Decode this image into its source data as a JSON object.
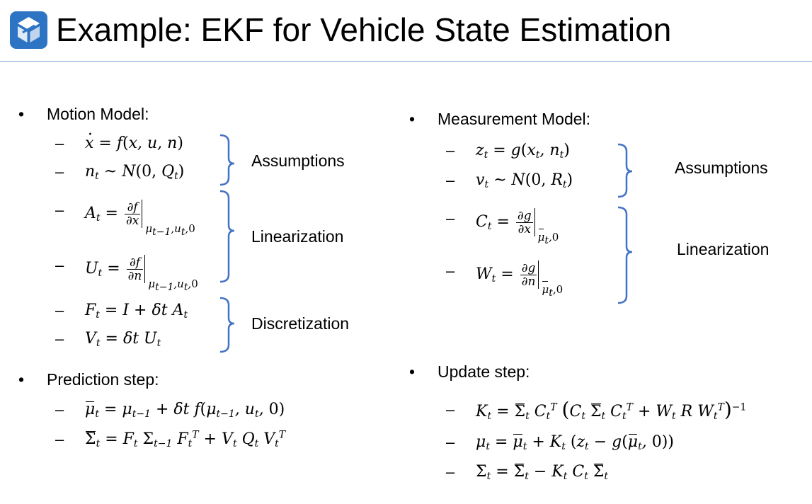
{
  "slide": {
    "title": "Example: EKF for Vehicle State Estimation",
    "logo_icon": "cube-logo-icon",
    "accent_color": "#4472c4",
    "rule_color": "#8eaadb"
  },
  "left": {
    "motion_heading": "Motion Model:",
    "prediction_heading": "Prediction step:",
    "groups": {
      "assumptions": "Assumptions",
      "linearization": "Linearization",
      "discretization": "Discretization"
    }
  },
  "right": {
    "measurement_heading": "Measurement Model:",
    "update_heading": "Update step:",
    "groups": {
      "assumptions": "Assumptions",
      "linearization": "Linearization"
    }
  },
  "bullet_glyph": "•",
  "dash_glyph": "–"
}
